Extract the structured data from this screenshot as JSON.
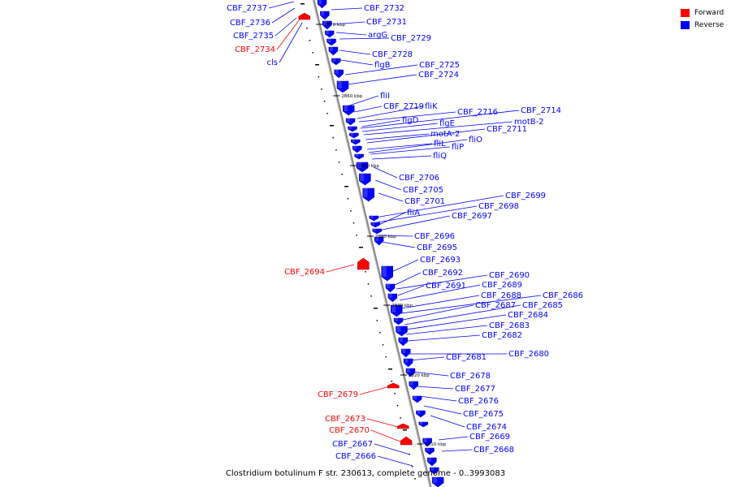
{
  "legend": {
    "forward_label": "Forward",
    "forward_color": "#ff0000",
    "reverse_label": "Reverse",
    "reverse_color": "#0000ff"
  },
  "caption": "Clostridium botulinum F str. 230613, complete genome - 0..3993083",
  "kbp_marks": [
    "2870 kbp",
    "2860 kbp",
    "2850 kbp",
    "2840 kbp",
    "2830 kbp",
    "2820 kbp",
    "2810 kbp"
  ],
  "forward_labels": [
    "CBF_2734",
    "CBF_2694",
    "CBF_2679",
    "CBF_2673",
    "CBF_2670"
  ],
  "left_reverse_labels": [
    "CBF_2737",
    "CBF_2736",
    "CBF_2735",
    "cls",
    "CBF_2667",
    "CBF_2666"
  ],
  "right_labels": [
    "CBF_2732",
    "CBF_2731",
    "argG",
    "CBF_2729",
    "CBF_2728",
    "flgB",
    "CBF_2725",
    "CBF_2724",
    "fliI",
    "CBF_2719",
    "fliK",
    "CBF_2716",
    "CBF_2714",
    "flgD",
    "flgE",
    "motB-2",
    "motA-2",
    "CBF_2711",
    "fliL",
    "fliO",
    "fliP",
    "fliQ",
    "CBF_2706",
    "CBF_2705",
    "CBF_2701",
    "CBF_2699",
    "CBF_2698",
    "fliA",
    "CBF_2697",
    "CBF_2696",
    "CBF_2695",
    "CBF_2693",
    "CBF_2692",
    "CBF_2690",
    "CBF_2691",
    "CBF_2689",
    "CBF_2688",
    "CBF_2686",
    "CBF_2687",
    "CBF_2685",
    "CBF_2684",
    "CBF_2683",
    "CBF_2682",
    "CBF_2680",
    "CBF_2681",
    "CBF_2678",
    "CBF_2677",
    "CBF_2676",
    "CBF_2675",
    "CBF_2674",
    "CBF_2669",
    "CBF_2668"
  ]
}
